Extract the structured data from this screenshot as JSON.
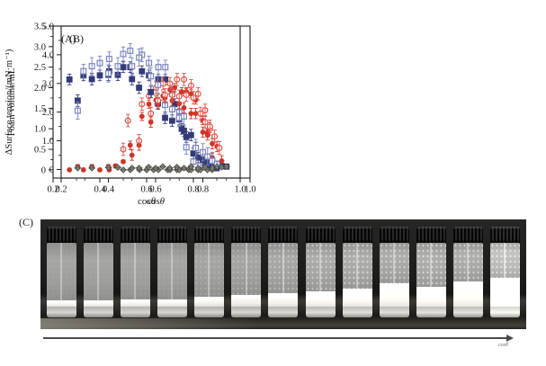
{
  "figure": {
    "panel_c_label": "(C)",
    "arrow_label": "cosθ"
  },
  "chart_data": [
    {
      "type": "scatter",
      "panel_label": "(A)",
      "xlabel": "cosθ",
      "ylabel": "Foam volume/mL",
      "xlim": [
        0.2,
        1.0
      ],
      "ylim": [
        -0.2,
        3.5
      ],
      "xticks": [
        0.2,
        0.4,
        0.6,
        0.8,
        1.0
      ],
      "xtick_labels": [
        "0.2",
        "0.4",
        "0.6",
        "0.8",
        "1.0"
      ],
      "xminor": [
        0.3,
        0.5,
        0.7,
        0.9
      ],
      "yticks": [
        0,
        0.5,
        1.0,
        1.5,
        2.0,
        2.5,
        3.0,
        3.5
      ],
      "ytick_labels": [
        "0",
        "0.5",
        "1.0",
        "1.5",
        "2.0",
        "2.5",
        "3.0",
        "3.5"
      ],
      "yminor": [
        0.25,
        0.75,
        1.25,
        1.75,
        2.25,
        2.75,
        3.25
      ],
      "grid": false,
      "legend": "none",
      "series": [
        {
          "name": "navy-filled-square",
          "marker": "square-filled",
          "color": "#323a77",
          "err": 0.13,
          "points": [
            [
              0.27,
              2.2
            ],
            [
              0.33,
              2.3
            ],
            [
              0.4,
              2.3
            ],
            [
              0.44,
              2.4
            ],
            [
              0.5,
              2.5
            ],
            [
              0.53,
              2.5
            ],
            [
              0.58,
              2.4
            ],
            [
              0.61,
              2.3
            ],
            [
              0.65,
              2.2
            ],
            [
              0.68,
              2.2
            ],
            [
              0.72,
              1.6
            ],
            [
              0.75,
              1.0
            ],
            [
              0.77,
              0.8
            ],
            [
              0.8,
              0.4
            ],
            [
              0.82,
              0.3
            ],
            [
              0.84,
              0.15
            ],
            [
              0.86,
              0.1
            ],
            [
              0.88,
              0.05
            ],
            [
              0.9,
              0.04
            ]
          ]
        },
        {
          "name": "slate-open-square",
          "marker": "square-open",
          "color": "#7b84bd",
          "err": 0.17,
          "points": [
            [
              0.33,
              2.4
            ],
            [
              0.4,
              2.6
            ],
            [
              0.44,
              2.7
            ],
            [
              0.5,
              2.82
            ],
            [
              0.53,
              2.9
            ],
            [
              0.58,
              2.8
            ],
            [
              0.61,
              2.6
            ],
            [
              0.65,
              2.5
            ],
            [
              0.68,
              2.5
            ],
            [
              0.71,
              1.85
            ],
            [
              0.74,
              1.4
            ],
            [
              0.77,
              0.55
            ],
            [
              0.8,
              0.2
            ],
            [
              0.83,
              0.1
            ],
            [
              0.85,
              0.06
            ]
          ]
        },
        {
          "name": "red-filled-circle",
          "marker": "circle-filled",
          "color": "#cf3327",
          "err": 0.1,
          "points": [
            [
              0.27,
              0.0
            ],
            [
              0.33,
              0.0
            ],
            [
              0.4,
              0.0
            ],
            [
              0.44,
              0.0
            ],
            [
              0.5,
              0.2
            ],
            [
              0.53,
              0.6
            ],
            [
              0.58,
              1.3
            ],
            [
              0.61,
              1.6
            ],
            [
              0.64,
              1.7
            ],
            [
              0.67,
              1.8
            ],
            [
              0.7,
              1.95
            ],
            [
              0.72,
              2.0
            ],
            [
              0.75,
              1.9
            ],
            [
              0.77,
              1.9
            ],
            [
              0.79,
              1.85
            ],
            [
              0.81,
              1.7
            ],
            [
              0.84,
              1.2
            ],
            [
              0.86,
              0.9
            ],
            [
              0.88,
              0.3
            ]
          ]
        },
        {
          "name": "red-open-circle",
          "marker": "circle-open",
          "color": "#df5348",
          "err": 0.15,
          "points": [
            [
              0.5,
              0.5
            ],
            [
              0.52,
              1.2
            ],
            [
              0.58,
              1.6
            ],
            [
              0.61,
              1.8
            ],
            [
              0.64,
              2.0
            ],
            [
              0.67,
              2.1
            ],
            [
              0.7,
              2.1
            ],
            [
              0.73,
              2.2
            ],
            [
              0.76,
              2.2
            ],
            [
              0.79,
              2.05
            ],
            [
              0.82,
              1.85
            ],
            [
              0.85,
              1.45
            ],
            [
              0.87,
              1.0
            ]
          ]
        },
        {
          "name": "gray-diamond",
          "marker": "diamond",
          "color": "#80807489",
          "err": 0,
          "points": [
            [
              0.5,
              0.0
            ],
            [
              0.53,
              0.0
            ],
            [
              0.57,
              0.0
            ],
            [
              0.6,
              0.0
            ],
            [
              0.63,
              0.0
            ],
            [
              0.65,
              0.0
            ],
            [
              0.69,
              0.0
            ],
            [
              0.7,
              0.0
            ],
            [
              0.73,
              0.0
            ],
            [
              0.74,
              0.0
            ],
            [
              0.78,
              0.0
            ],
            [
              0.79,
              0.0
            ],
            [
              0.82,
              0.0
            ],
            [
              0.83,
              0.0
            ],
            [
              0.86,
              0.0
            ],
            [
              0.88,
              0.0
            ]
          ]
        }
      ]
    },
    {
      "type": "scatter",
      "panel_label": "(B)",
      "xlabel": "cosθ",
      "ylabel": "ΔSurface tension/(mN·m⁻¹)",
      "xlim": [
        0.2,
        1.0
      ],
      "ylim": [
        -0.3,
        5.0
      ],
      "xticks": [
        0.2,
        0.4,
        0.6,
        0.8,
        1.0
      ],
      "xtick_labels": [
        "0.2",
        "0.4",
        "0.6",
        "0.8",
        "1.0"
      ],
      "xminor": [
        0.3,
        0.5,
        0.7,
        0.9
      ],
      "yticks": [
        0,
        1.0,
        2.0,
        3.0,
        4.0,
        5.0
      ],
      "ytick_labels": [
        "0",
        "1.0",
        "2.0",
        "3.0",
        "4.0",
        "5.0"
      ],
      "yminor": [
        0.5,
        1.5,
        2.5,
        3.5,
        4.5
      ],
      "grid": false,
      "legend": "none",
      "series": [
        {
          "name": "navy-filled-square",
          "marker": "square-filled",
          "color": "#323a77",
          "err": 0.2,
          "points": [
            [
              0.27,
              2.4
            ],
            [
              0.33,
              3.15
            ],
            [
              0.4,
              3.3
            ],
            [
              0.44,
              3.3
            ],
            [
              0.5,
              3.15
            ],
            [
              0.53,
              2.85
            ],
            [
              0.58,
              2.7
            ],
            [
              0.61,
              2.3
            ],
            [
              0.64,
              1.8
            ],
            [
              0.67,
              1.7
            ],
            [
              0.7,
              1.75
            ],
            [
              0.72,
              1.35
            ],
            [
              0.75,
              1.2
            ],
            [
              0.77,
              0.75
            ],
            [
              0.8,
              0.35
            ],
            [
              0.82,
              0.25
            ],
            [
              0.84,
              0.2
            ],
            [
              0.86,
              0.15
            ],
            [
              0.88,
              0.12
            ],
            [
              0.9,
              0.1
            ]
          ]
        },
        {
          "name": "slate-open-square",
          "marker": "square-open",
          "color": "#7b84bd",
          "err": 0.3,
          "points": [
            [
              0.27,
              2.05
            ],
            [
              0.33,
              3.6
            ],
            [
              0.4,
              3.35
            ],
            [
              0.44,
              3.6
            ],
            [
              0.5,
              3.6
            ],
            [
              0.53,
              3.9
            ],
            [
              0.58,
              3.25
            ],
            [
              0.61,
              2.95
            ],
            [
              0.64,
              2.25
            ],
            [
              0.67,
              2.1
            ],
            [
              0.7,
              1.8
            ],
            [
              0.72,
              1.85
            ],
            [
              0.77,
              0.75
            ],
            [
              0.8,
              0.6
            ],
            [
              0.82,
              0.45
            ],
            [
              0.84,
              0.3
            ],
            [
              0.86,
              0.18
            ]
          ]
        },
        {
          "name": "red-filled-circle",
          "marker": "circle-filled",
          "color": "#cf3327",
          "err": 0.18,
          "points": [
            [
              0.27,
              0.1
            ],
            [
              0.33,
              0.1
            ],
            [
              0.4,
              0.1
            ],
            [
              0.43,
              0.12
            ],
            [
              0.5,
              0.5
            ],
            [
              0.53,
              0.85
            ],
            [
              0.58,
              1.65
            ],
            [
              0.61,
              2.3
            ],
            [
              0.64,
              2.5
            ],
            [
              0.67,
              2.4
            ],
            [
              0.7,
              2.3
            ],
            [
              0.72,
              2.15
            ],
            [
              0.75,
              1.95
            ],
            [
              0.77,
              1.95
            ],
            [
              0.8,
              1.3
            ],
            [
              0.82,
              1.2
            ],
            [
              0.84,
              0.9
            ],
            [
              0.86,
              0.8
            ],
            [
              0.88,
              0.3
            ]
          ]
        },
        {
          "name": "red-open-circle",
          "marker": "circle-open",
          "color": "#df5348",
          "err": 0.22,
          "points": [
            [
              0.53,
              1.0
            ],
            [
              0.58,
              1.95
            ],
            [
              0.61,
              2.4
            ],
            [
              0.64,
              2.6
            ],
            [
              0.67,
              2.6
            ],
            [
              0.7,
              2.55
            ],
            [
              0.73,
              2.6
            ],
            [
              0.76,
              2.5
            ],
            [
              0.79,
              1.95
            ],
            [
              0.81,
              1.65
            ],
            [
              0.83,
              1.5
            ],
            [
              0.85,
              1.15
            ],
            [
              0.87,
              0.75
            ]
          ]
        },
        {
          "name": "gray-diamond",
          "marker": "diamond",
          "color": "#808074",
          "err": 0,
          "points": [
            [
              0.27,
              0.05
            ],
            [
              0.33,
              0.05
            ],
            [
              0.4,
              0.07
            ],
            [
              0.44,
              0.07
            ],
            [
              0.5,
              0.05
            ],
            [
              0.53,
              0.05
            ],
            [
              0.57,
              0.08
            ],
            [
              0.6,
              0.05
            ],
            [
              0.63,
              0.1
            ],
            [
              0.66,
              0.05
            ],
            [
              0.69,
              0.08
            ],
            [
              0.72,
              0.05
            ],
            [
              0.75,
              0.1
            ],
            [
              0.78,
              0.05
            ],
            [
              0.81,
              0.08
            ],
            [
              0.84,
              0.05
            ],
            [
              0.86,
              0.1
            ],
            [
              0.88,
              0.08
            ],
            [
              0.9,
              0.1
            ]
          ]
        }
      ]
    }
  ],
  "photo": {
    "panel_label": "(C)",
    "vial_count": 13,
    "vials": [
      {
        "foam": 0.06,
        "turbidity": 0.06,
        "bright": 1.0
      },
      {
        "foam": 0.06,
        "turbidity": 0.06,
        "bright": 1.0
      },
      {
        "foam": 0.07,
        "turbidity": 0.1,
        "bright": 1.0
      },
      {
        "foam": 0.07,
        "turbidity": 0.12,
        "bright": 1.0
      },
      {
        "foam": 0.11,
        "turbidity": 0.22,
        "bright": 1.0
      },
      {
        "foam": 0.14,
        "turbidity": 0.3,
        "bright": 1.0
      },
      {
        "foam": 0.16,
        "turbidity": 0.42,
        "bright": 1.02
      },
      {
        "foam": 0.19,
        "turbidity": 0.5,
        "bright": 1.04
      },
      {
        "foam": 0.22,
        "turbidity": 0.55,
        "bright": 1.05
      },
      {
        "foam": 0.3,
        "turbidity": 0.5,
        "bright": 1.05
      },
      {
        "foam": 0.25,
        "turbidity": 0.6,
        "bright": 1.06
      },
      {
        "foam": 0.32,
        "turbidity": 0.55,
        "bright": 1.06
      },
      {
        "foam": 0.37,
        "turbidity": 0.45,
        "bright": 1.18
      }
    ]
  }
}
